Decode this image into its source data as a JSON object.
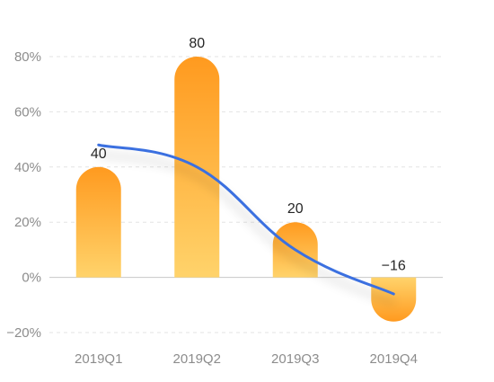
{
  "chart_data": {
    "type": "bar",
    "categories": [
      "2019Q1",
      "2019Q2",
      "2019Q3",
      "2019Q4"
    ],
    "series": [
      {
        "type": "bar",
        "values": [
          40,
          80,
          20,
          -16
        ],
        "data_labels": [
          "40",
          "80",
          "20",
          "−16"
        ]
      },
      {
        "type": "line",
        "values": [
          48,
          40,
          10,
          -6
        ]
      }
    ],
    "y_ticks": [
      "80%",
      "60%",
      "40%",
      "20%",
      "0%",
      "−20%"
    ],
    "y_tick_values": [
      80,
      60,
      40,
      20,
      0,
      -20
    ],
    "ylim": [
      -20,
      80
    ],
    "grid": true,
    "legend": "none",
    "colors": {
      "bar_top": "#ff9a1f",
      "bar_bottom": "#ffd36b",
      "line": "#3a6fe0",
      "grid": "#e3e3e3",
      "tick_text": "#8c8c8c",
      "label_text": "#262626"
    }
  }
}
